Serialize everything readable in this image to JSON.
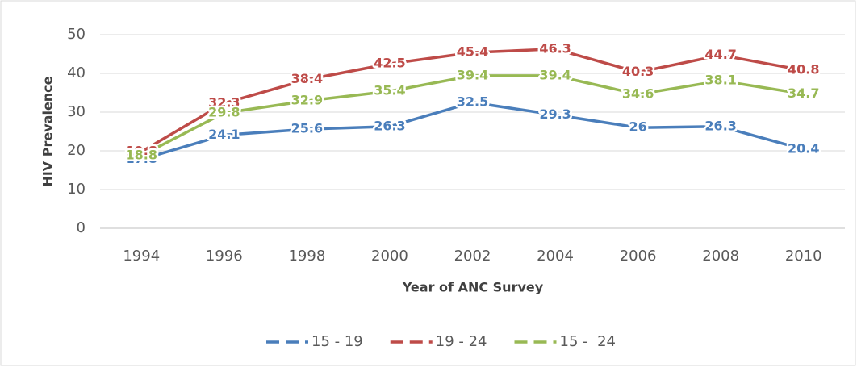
{
  "chart_data": {
    "type": "line",
    "categories": [
      "1994",
      "1996",
      "1998",
      "2000",
      "2002",
      "2004",
      "2006",
      "2008",
      "2010"
    ],
    "series": [
      {
        "name": "15 - 19",
        "color": "#4a7ebb",
        "values": [
          17.8,
          24.1,
          25.6,
          26.3,
          32.5,
          29.3,
          26,
          26.3,
          20.4
        ]
      },
      {
        "name": "19 - 24",
        "color": "#be4b48",
        "values": [
          19.8,
          32.3,
          38.4,
          42.5,
          45.4,
          46.3,
          40.3,
          44.7,
          40.8
        ]
      },
      {
        "name": "15 -  24",
        "color": "#98b954",
        "values": [
          18.8,
          29.8,
          32.9,
          35.4,
          39.4,
          39.4,
          34.6,
          38.1,
          34.7
        ]
      }
    ],
    "y_label": "HIV Prevalence",
    "x_label": "Year of ANC Survey",
    "ylim": [
      0,
      50
    ],
    "yticks": [
      0,
      10,
      20,
      30,
      40,
      50
    ],
    "grid": true,
    "legend": "bottom"
  }
}
